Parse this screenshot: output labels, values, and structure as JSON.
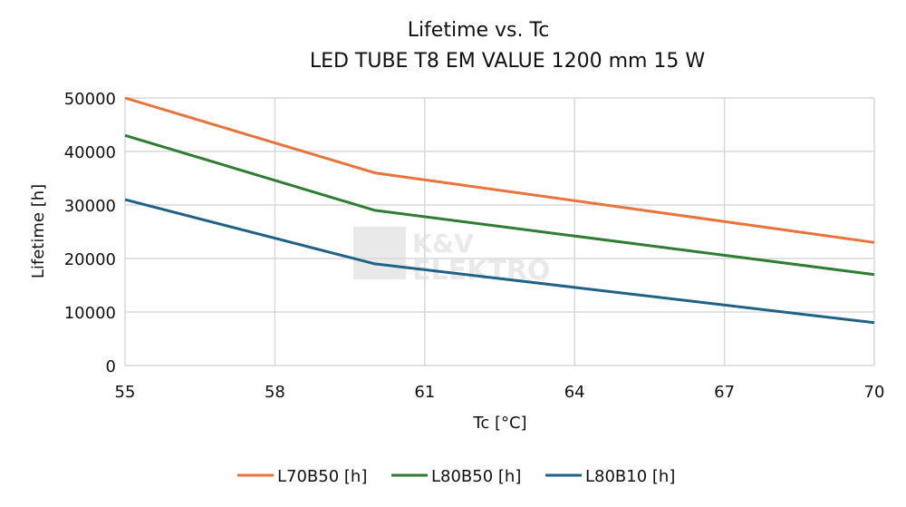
{
  "chart_data": {
    "type": "line",
    "title": "Lifetime vs. Tc",
    "subtitle": "LED TUBE T8 EM VALUE 1200 mm 15 W",
    "xlabel": "Tc [°C]",
    "ylabel": "Lifetime [h]",
    "xlim": [
      55,
      70
    ],
    "ylim": [
      0,
      50000
    ],
    "xticks": [
      55,
      58,
      61,
      64,
      67,
      70
    ],
    "yticks": [
      0,
      10000,
      20000,
      30000,
      40000,
      50000
    ],
    "grid": true,
    "legend_position": "bottom",
    "watermark": "K&V ELEKTRO",
    "series": [
      {
        "name": "L70B50 [h]",
        "color": "#e8743b",
        "x": [
          55,
          60,
          70
        ],
        "y": [
          50000,
          36000,
          23000
        ]
      },
      {
        "name": "L80B50 [h]",
        "color": "#2e7d32",
        "x": [
          55,
          60,
          70
        ],
        "y": [
          43000,
          29000,
          17000
        ]
      },
      {
        "name": "L80B10 [h]",
        "color": "#1f6288",
        "x": [
          55,
          60,
          70
        ],
        "y": [
          31000,
          19000,
          8000
        ]
      }
    ]
  }
}
